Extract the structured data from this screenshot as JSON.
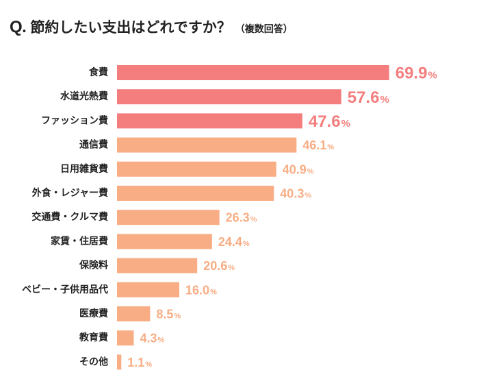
{
  "title": {
    "prefix": "Q.",
    "main": "節約したい支出はどれですか？",
    "note": "（複数回答）"
  },
  "colors": {
    "top": "#f47e7e",
    "other": "#f8ad84"
  },
  "chart_data": {
    "type": "bar",
    "orientation": "horizontal",
    "unit": "%",
    "categories": [
      "食費",
      "水道光熱費",
      "ファッション費",
      "通信費",
      "日用雑貨費",
      "外食・レジャー費",
      "交通費・クルマ費",
      "家賃・住居費",
      "保険料",
      "ベビー・子供用品代",
      "医療費",
      "教育費",
      "その他"
    ],
    "values": [
      69.9,
      57.6,
      47.6,
      46.1,
      40.9,
      40.3,
      26.3,
      24.4,
      20.6,
      16.0,
      8.5,
      4.3,
      1.1
    ],
    "labels": [
      "69.9",
      "57.6",
      "47.6",
      "46.1",
      "40.9",
      "40.3",
      "26.3",
      "24.4",
      "20.6",
      "16.0",
      "8.5",
      "4.3",
      "1.1"
    ],
    "highlight_top": 3,
    "grid": false,
    "legend": "none"
  }
}
